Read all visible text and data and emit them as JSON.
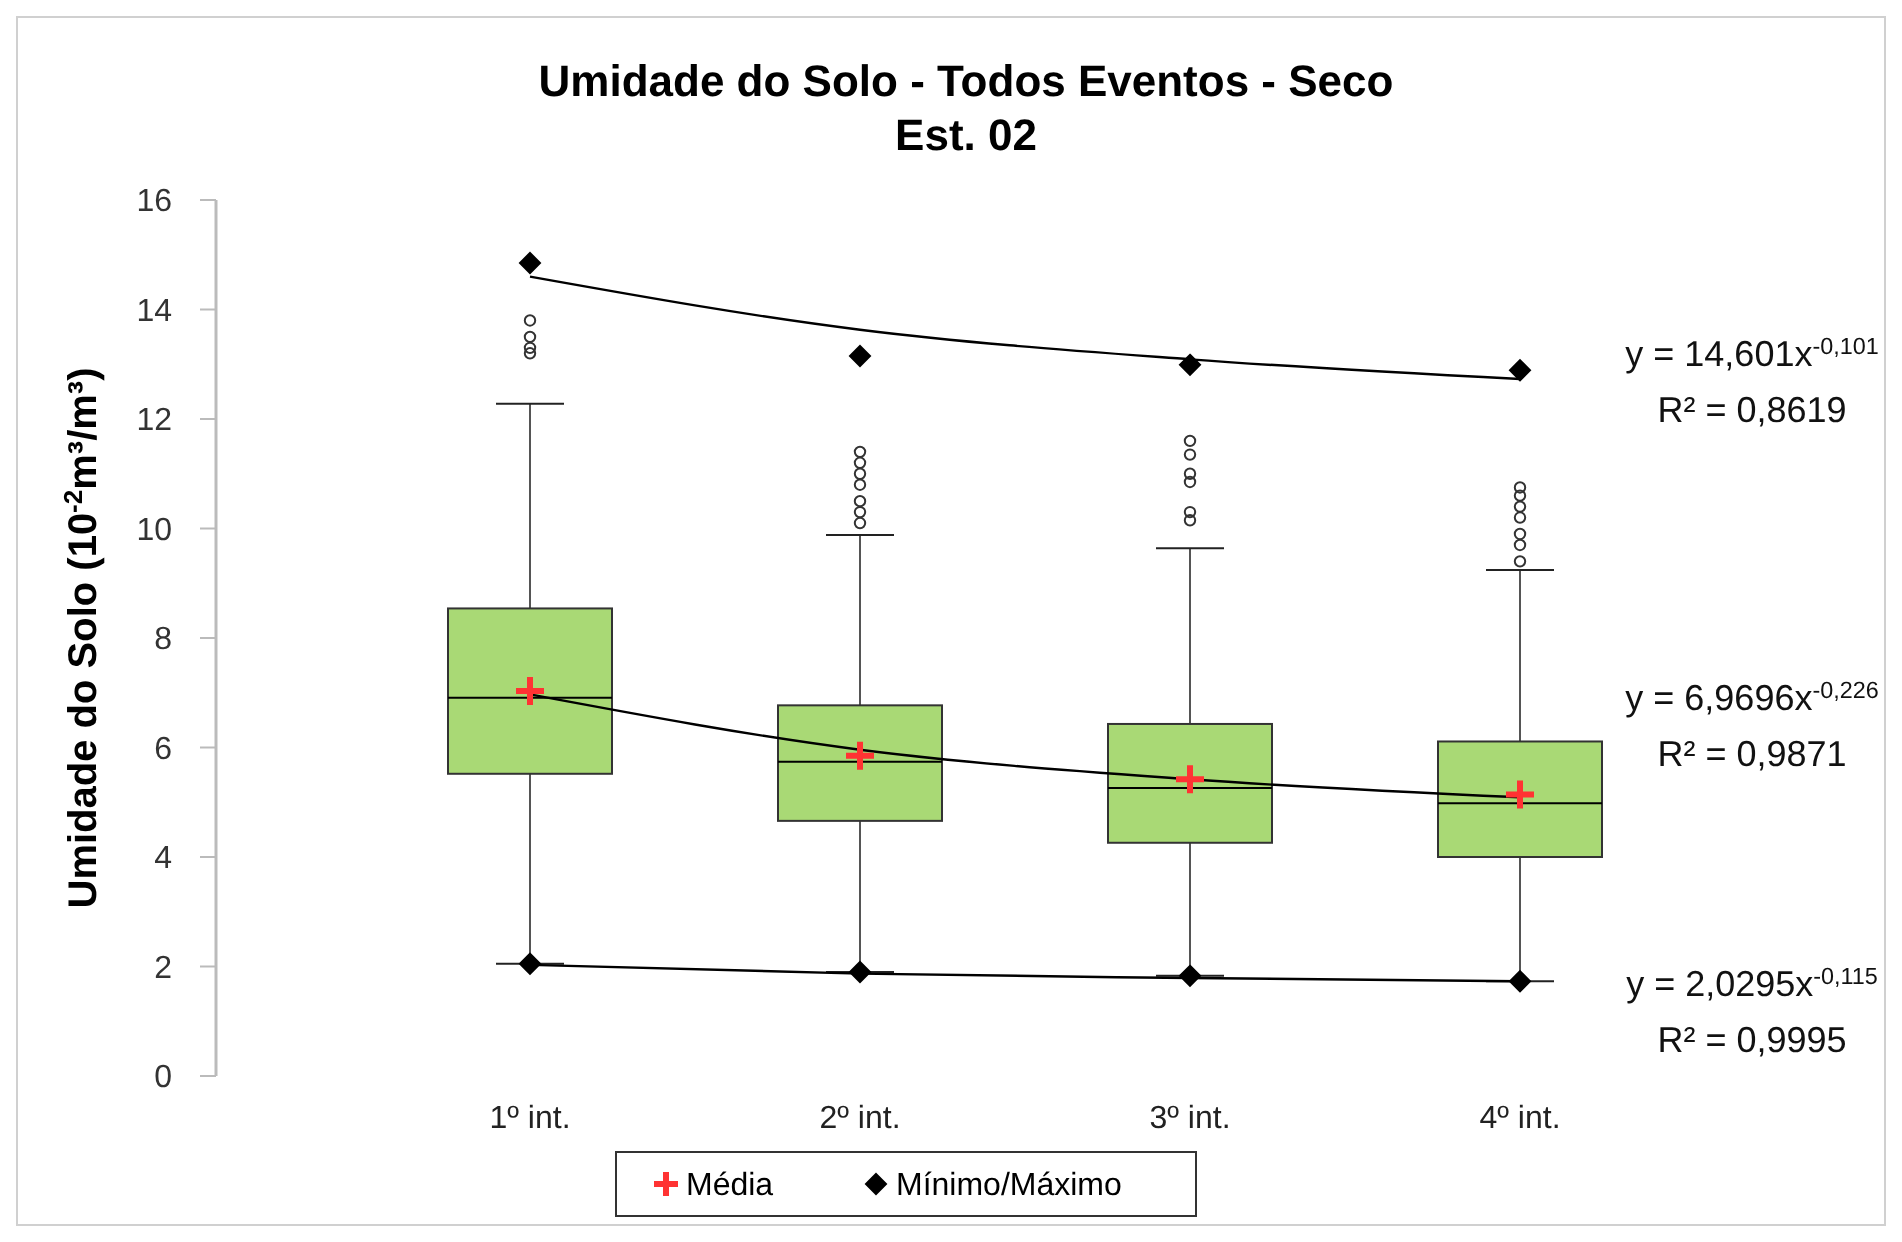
{
  "chart_data": {
    "type": "box",
    "title": "Umidade do Solo - Todos Eventos - Seco",
    "subtitle": "Est. 02",
    "ylabel": "Umidade do Solo (10$^{-2}$m³/m³)",
    "categories": [
      "1º int.",
      "2º int.",
      "3º int.",
      "4º int."
    ],
    "ylim": [
      0,
      16
    ],
    "yticks": [
      0,
      2,
      4,
      6,
      8,
      10,
      12,
      14,
      16
    ],
    "legend": "bottom",
    "series": [
      {
        "type": "box",
        "color": "#a9d975",
        "boxes": [
          {
            "low": 2.05,
            "q1": 5.52,
            "median": 6.91,
            "q3": 8.54,
            "high": 12.28,
            "outliers": [
              13.8,
              13.5,
              13.3,
              13.2
            ]
          },
          {
            "low": 1.9,
            "q1": 4.66,
            "median": 5.74,
            "q3": 6.77,
            "high": 9.88,
            "outliers": [
              11.4,
              11.2,
              11.0,
              10.8,
              10.5,
              10.3,
              10.1
            ]
          },
          {
            "low": 1.83,
            "q1": 4.26,
            "median": 5.26,
            "q3": 6.43,
            "high": 9.64,
            "outliers": [
              11.6,
              11.35,
              11.0,
              10.85,
              10.3,
              10.15
            ]
          },
          {
            "low": 1.73,
            "q1": 4.0,
            "median": 4.98,
            "q3": 6.11,
            "high": 9.24,
            "outliers": [
              10.75,
              10.6,
              10.4,
              10.2,
              9.9,
              9.7,
              9.4
            ]
          }
        ]
      },
      {
        "type": "line",
        "color": "#000000",
        "x": [
          "1º int.",
          "2º int.",
          "3º int.",
          "4º int."
        ],
        "values": [
          14.6,
          13.63,
          13.09,
          12.73
        ]
      },
      {
        "type": "line",
        "color": "#000000",
        "x": [
          "1º int.",
          "2º int.",
          "3º int.",
          "4º int."
        ],
        "values": [
          6.97,
          5.96,
          5.42,
          5.09
        ]
      },
      {
        "type": "line",
        "color": "#000000",
        "x": [
          "1º int.",
          "2º int.",
          "3º int.",
          "4º int."
        ],
        "values": [
          2.03,
          1.87,
          1.79,
          1.73
        ]
      },
      {
        "type": "scatter",
        "name": "Média",
        "color": "#ff3333",
        "marker": "cross",
        "x": [
          "1º int.",
          "2º int.",
          "3º int.",
          "4º int."
        ],
        "values": [
          7.03,
          5.85,
          5.42,
          5.14
        ]
      },
      {
        "type": "scatter",
        "name": "Mínimo/Máximo",
        "color": "#000000",
        "marker": "diamond",
        "x": [
          "1º int.",
          "2º int.",
          "3º int.",
          "4º int.",
          "1º int.",
          "2º int.",
          "3º int.",
          "4º int."
        ],
        "values": [
          14.85,
          13.15,
          12.99,
          12.89,
          2.05,
          1.9,
          1.83,
          1.73
        ]
      }
    ],
    "annotations": [
      "y = 14,601x$^{-0,101}$",
      "R² = 0,8619",
      "y = 6,9696x$^{-0,226}$",
      "R² = 0,9871",
      "y = 2,0295x$^{-0,115}$",
      "R² = 0,9995"
    ]
  }
}
